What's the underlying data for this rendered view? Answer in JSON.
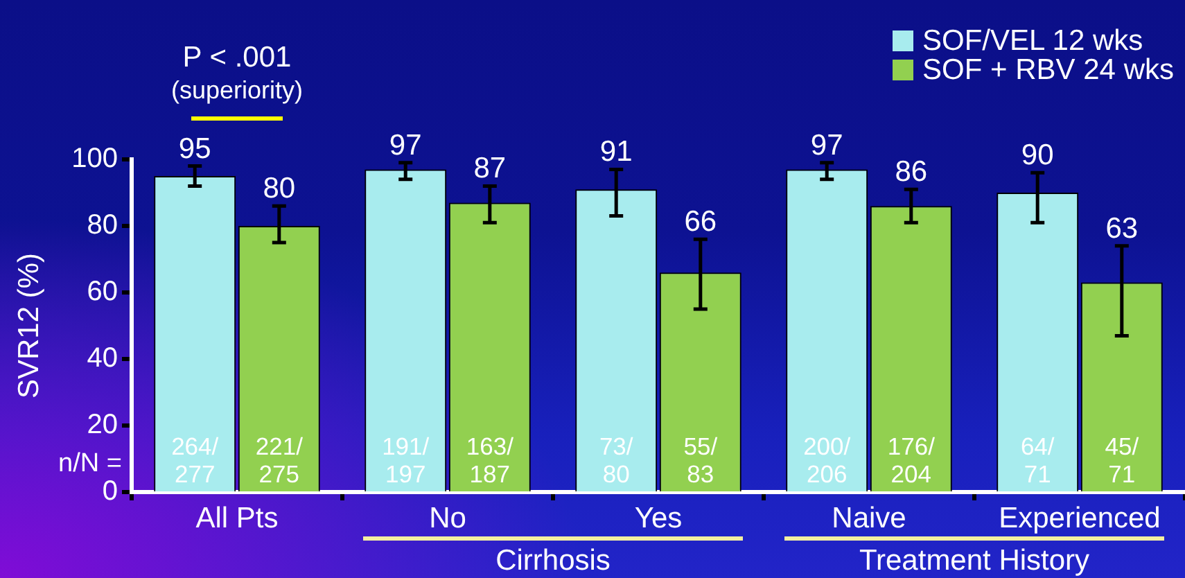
{
  "chart_data": {
    "type": "bar",
    "categories": [
      "All Pts",
      "No",
      "Yes",
      "Naive",
      "Experienced"
    ],
    "series": [
      {
        "name": "SOF/VEL 12 wks",
        "color": "#a8ecee",
        "values": [
          95,
          97,
          91,
          97,
          90
        ],
        "errors": [
          [
            92,
            98
          ],
          [
            94,
            99
          ],
          [
            83,
            97
          ],
          [
            94,
            99
          ],
          [
            81,
            96
          ]
        ]
      },
      {
        "name": "SOF + RBV 24 wks",
        "color": "#92d050",
        "values": [
          80,
          87,
          66,
          86,
          63
        ],
        "errors": [
          [
            75,
            86
          ],
          [
            81,
            92
          ],
          [
            55,
            76
          ],
          [
            81,
            91
          ],
          [
            47,
            74
          ]
        ]
      }
    ],
    "ylabel": "SVR12 (%)",
    "ylim": [
      0,
      100
    ],
    "yticks": [
      0,
      20,
      40,
      60,
      80,
      100
    ],
    "grid": false,
    "legend": "top right",
    "data_labels": true,
    "annotations": [
      "P < .001",
      "(superiority)",
      "n/N =",
      "Cirrhosis",
      "Treatment History",
      {
        "text": "264/277",
        "x": "All Pts",
        "y": 9
      },
      {
        "text": "221/275",
        "x": "All Pts",
        "y": 9
      },
      {
        "text": "191/197",
        "x": "No",
        "y": 9
      },
      {
        "text": "163/187",
        "x": "No",
        "y": 9
      },
      {
        "text": "73/80",
        "x": "Yes",
        "y": 9
      },
      {
        "text": "55/83",
        "x": "Yes",
        "y": 9
      },
      {
        "text": "200/206",
        "x": "Naive",
        "y": 9
      },
      {
        "text": "176/204",
        "x": "Naive",
        "y": 9
      },
      {
        "text": "64/71",
        "x": "Experienced",
        "y": 9
      },
      {
        "text": "45/71",
        "x": "Experienced",
        "y": 9
      }
    ]
  }
}
